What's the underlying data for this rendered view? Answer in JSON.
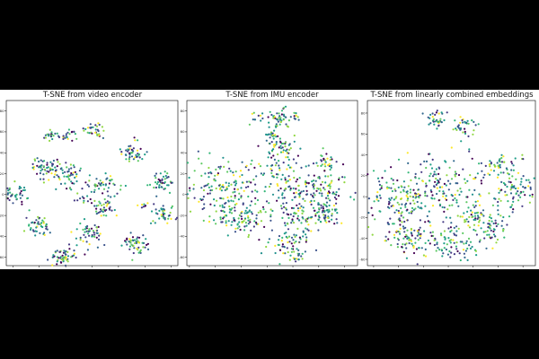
{
  "chart_data": [
    {
      "type": "scatter",
      "title": "T-SNE from video encoder",
      "xlim": [
        -65,
        65
      ],
      "ylim": [
        -68,
        90
      ],
      "xticks": [
        -60,
        -40,
        -20,
        0,
        20,
        40,
        60
      ],
      "yticks": [
        -60,
        -40,
        -20,
        0,
        20,
        40,
        60,
        80
      ],
      "grid": false,
      "clusters": [
        {
          "x": -30,
          "y": 57,
          "n": 22,
          "spread": 3
        },
        {
          "x": -17,
          "y": 57,
          "n": 18,
          "spread": 3
        },
        {
          "x": 2,
          "y": 62,
          "n": 30,
          "spread": 4
        },
        {
          "x": 30,
          "y": 40,
          "n": 45,
          "spread": 5
        },
        {
          "x": -35,
          "y": 27,
          "n": 55,
          "spread": 6
        },
        {
          "x": -18,
          "y": 19,
          "n": 55,
          "spread": 6
        },
        {
          "x": 53,
          "y": 11,
          "n": 45,
          "spread": 5
        },
        {
          "x": -58,
          "y": 0,
          "n": 45,
          "spread": 5
        },
        {
          "x": 8,
          "y": 9,
          "n": 45,
          "spread": 5
        },
        {
          "x": 8,
          "y": -12,
          "n": 40,
          "spread": 5
        },
        {
          "x": -7,
          "y": -5,
          "n": 10,
          "spread": 3
        },
        {
          "x": 40,
          "y": -10,
          "n": 8,
          "spread": 2
        },
        {
          "x": 55,
          "y": -18,
          "n": 40,
          "spread": 5
        },
        {
          "x": -40,
          "y": -30,
          "n": 45,
          "spread": 5
        },
        {
          "x": -3,
          "y": -38,
          "n": 50,
          "spread": 5
        },
        {
          "x": 33,
          "y": -48,
          "n": 50,
          "spread": 5
        },
        {
          "x": -22,
          "y": -60,
          "n": 55,
          "spread": 5
        }
      ]
    },
    {
      "type": "scatter",
      "title": "T-SNE from IMU encoder",
      "xlim": [
        -62,
        70
      ],
      "ylim": [
        -68,
        90
      ],
      "xticks": [
        -60,
        -40,
        -20,
        0,
        20,
        40,
        60
      ],
      "yticks": [
        -60,
        -40,
        -20,
        0,
        20,
        40,
        60,
        80
      ],
      "grid": false,
      "clusters": [
        {
          "x": -8,
          "y": 72,
          "n": 12,
          "spread": 3
        },
        {
          "x": 10,
          "y": 75,
          "n": 45,
          "spread": 5
        },
        {
          "x": 22,
          "y": 73,
          "n": 10,
          "spread": 2
        },
        {
          "x": 5,
          "y": 58,
          "n": 18,
          "spread": 3
        },
        {
          "x": 12,
          "y": 45,
          "n": 50,
          "spread": 6
        },
        {
          "x": 45,
          "y": 32,
          "n": 25,
          "spread": 4
        },
        {
          "x": -35,
          "y": 5,
          "n": 160,
          "spread": 16
        },
        {
          "x": 15,
          "y": 10,
          "n": 140,
          "spread": 15
        },
        {
          "x": 42,
          "y": 5,
          "n": 80,
          "spread": 10
        },
        {
          "x": 45,
          "y": -20,
          "n": 55,
          "spread": 7
        },
        {
          "x": -20,
          "y": -22,
          "n": 90,
          "spread": 10
        },
        {
          "x": 25,
          "y": -22,
          "n": 55,
          "spread": 8
        },
        {
          "x": 18,
          "y": -50,
          "n": 70,
          "spread": 8
        }
      ]
    },
    {
      "type": "scatter",
      "title": "T-SNE from linearly combined embeddings",
      "xlim": [
        -65,
        70
      ],
      "ylim": [
        -66,
        92
      ],
      "xticks": [
        -60,
        -40,
        -20,
        0,
        20,
        40,
        60
      ],
      "yticks": [
        -60,
        -40,
        -20,
        0,
        20,
        40,
        60,
        80
      ],
      "grid": false,
      "clusters": [
        {
          "x": -10,
          "y": 74,
          "n": 35,
          "spread": 5
        },
        {
          "x": 12,
          "y": 68,
          "n": 35,
          "spread": 5
        },
        {
          "x": 40,
          "y": 28,
          "n": 60,
          "spread": 7
        },
        {
          "x": 55,
          "y": 5,
          "n": 70,
          "spread": 9
        },
        {
          "x": -40,
          "y": -5,
          "n": 140,
          "spread": 14
        },
        {
          "x": -5,
          "y": 10,
          "n": 150,
          "spread": 16
        },
        {
          "x": 20,
          "y": -20,
          "n": 35,
          "spread": 5
        },
        {
          "x": 35,
          "y": -30,
          "n": 55,
          "spread": 8
        },
        {
          "x": -30,
          "y": -40,
          "n": 90,
          "spread": 10
        },
        {
          "x": 5,
          "y": -45,
          "n": 80,
          "spread": 10
        }
      ]
    }
  ]
}
